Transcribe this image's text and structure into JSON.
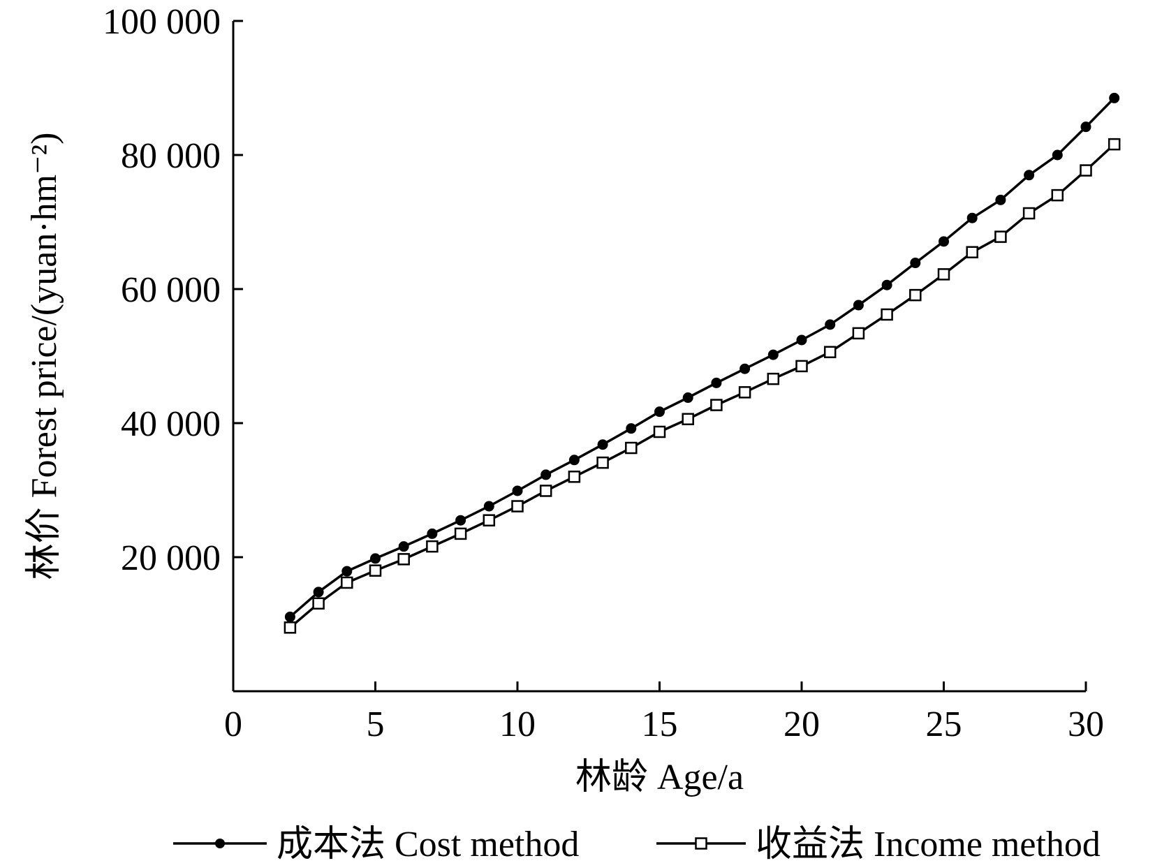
{
  "chart_data": {
    "type": "line",
    "xlabel": "林龄 Age/a",
    "ylabel": "林价 Forest price/(yuan·hm⁻²)",
    "xlim": [
      0,
      30
    ],
    "ylim": [
      0,
      100000
    ],
    "x_ticks": [
      0,
      5,
      10,
      15,
      20,
      25,
      30
    ],
    "x_tick_labels": [
      "0",
      "5",
      "10",
      "15",
      "20",
      "25",
      "30"
    ],
    "y_ticks": [
      20000,
      40000,
      60000,
      80000,
      100000
    ],
    "y_tick_labels": [
      "20 000",
      "40 000",
      "60 000",
      "80 000",
      "100 000"
    ],
    "grid": false,
    "legend_position": "bottom",
    "x": [
      2,
      3,
      4,
      5,
      6,
      7,
      8,
      9,
      10,
      11,
      12,
      13,
      14,
      15,
      16,
      17,
      18,
      19,
      20,
      21,
      22,
      23,
      24,
      25,
      26,
      27,
      28,
      29,
      30,
      31
    ],
    "series": [
      {
        "name": "成本法 Cost method",
        "marker": "filled-circle",
        "values": [
          11100,
          14800,
          17900,
          19800,
          21600,
          23500,
          25500,
          27600,
          29900,
          32300,
          34500,
          36800,
          39200,
          41700,
          43800,
          46000,
          48100,
          50200,
          52400,
          54700,
          57600,
          60600,
          63900,
          67100,
          70600,
          73300,
          77000,
          80000,
          84200,
          88500
        ]
      },
      {
        "name": "收益法 Income method",
        "marker": "open-square",
        "values": [
          9500,
          13100,
          16200,
          18000,
          19700,
          21600,
          23500,
          25500,
          27600,
          29900,
          32000,
          34100,
          36300,
          38700,
          40600,
          42700,
          44600,
          46600,
          48500,
          50600,
          53400,
          56200,
          59100,
          62200,
          65500,
          67800,
          71300,
          74000,
          77700,
          81600
        ]
      }
    ]
  }
}
